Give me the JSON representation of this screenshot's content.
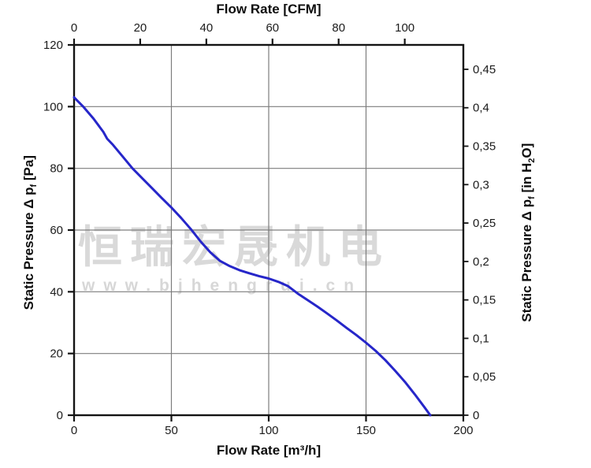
{
  "watermark": {
    "line1": "恒瑞宏晟机电",
    "line2": "www.bjhengrui.cn"
  },
  "chart_data": {
    "type": "line",
    "top_axis": {
      "label": "Flow Rate [CFM]",
      "ticks": [
        0,
        20,
        40,
        60,
        80,
        100
      ],
      "unit_conversion_m3h_per_cfm": 1.699
    },
    "bottom_axis": {
      "label": "Flow Rate [m³/h]",
      "ticks": [
        0,
        50,
        100,
        150,
        200
      ],
      "range": [
        0,
        200
      ]
    },
    "left_axis": {
      "label": "Static Pressure Δ pf [Pa]",
      "label_parts": [
        {
          "text": "Static Pressure Δ p",
          "sub": false
        },
        {
          "text": "f",
          "sub": true
        },
        {
          "text": " [Pa]",
          "sub": false
        }
      ],
      "ticks": [
        0,
        20,
        40,
        60,
        80,
        100,
        120
      ],
      "range": [
        0,
        120
      ]
    },
    "right_axis": {
      "label": "Static Pressure Δ pf [in H2O]",
      "label_parts": [
        {
          "text": "Static Pressure Δ p",
          "sub": false
        },
        {
          "text": "f",
          "sub": true
        },
        {
          "text": " [in H",
          "sub": false
        },
        {
          "text": "2",
          "sub": true
        },
        {
          "text": "O]",
          "sub": false
        }
      ],
      "tick_labels": [
        "0",
        "0,05",
        "0,1",
        "0,15",
        "0,2",
        "0,25",
        "0,3",
        "0,35",
        "0,4",
        "0,45"
      ],
      "tick_values": [
        0,
        0.05,
        0.1,
        0.15,
        0.2,
        0.25,
        0.3,
        0.35,
        0.4,
        0.45
      ],
      "pa_per_inh2o": 249.1
    },
    "gridlines": {
      "x_m3h": [
        50,
        100,
        150
      ],
      "y_pa": [
        20,
        40,
        60,
        80,
        100
      ]
    },
    "style": {
      "frame_color": "#141414",
      "grid_color": "#7d7d7d",
      "tick_color": "#141414",
      "curve_color": "#2626c9"
    },
    "series": [
      {
        "name": "fan-performance-curve",
        "color": "#2626c9",
        "points_m3h_pa": [
          [
            0,
            103
          ],
          [
            5,
            99.8
          ],
          [
            10,
            96.1
          ],
          [
            15,
            91.8
          ],
          [
            17,
            89.6
          ],
          [
            20,
            87.6
          ],
          [
            25,
            83.8
          ],
          [
            30,
            80
          ],
          [
            35,
            76.8
          ],
          [
            40,
            73.6
          ],
          [
            45,
            70.4
          ],
          [
            50,
            67.3
          ],
          [
            55,
            63.9
          ],
          [
            60,
            60.3
          ],
          [
            65,
            56.3
          ],
          [
            70,
            52.8
          ],
          [
            75,
            50
          ],
          [
            80,
            48.3
          ],
          [
            85,
            47
          ],
          [
            90,
            46
          ],
          [
            95,
            45.1
          ],
          [
            100,
            44.3
          ],
          [
            105,
            43.2
          ],
          [
            110,
            41.8
          ],
          [
            115,
            39.4
          ],
          [
            120,
            37.3
          ],
          [
            125,
            35.2
          ],
          [
            130,
            33
          ],
          [
            135,
            30.7
          ],
          [
            140,
            28.3
          ],
          [
            145,
            26
          ],
          [
            150,
            23.5
          ],
          [
            155,
            20.8
          ],
          [
            160,
            17.8
          ],
          [
            165,
            14.4
          ],
          [
            170,
            10.8
          ],
          [
            175,
            6.8
          ],
          [
            180,
            2.6
          ],
          [
            183,
            0
          ]
        ]
      }
    ]
  }
}
